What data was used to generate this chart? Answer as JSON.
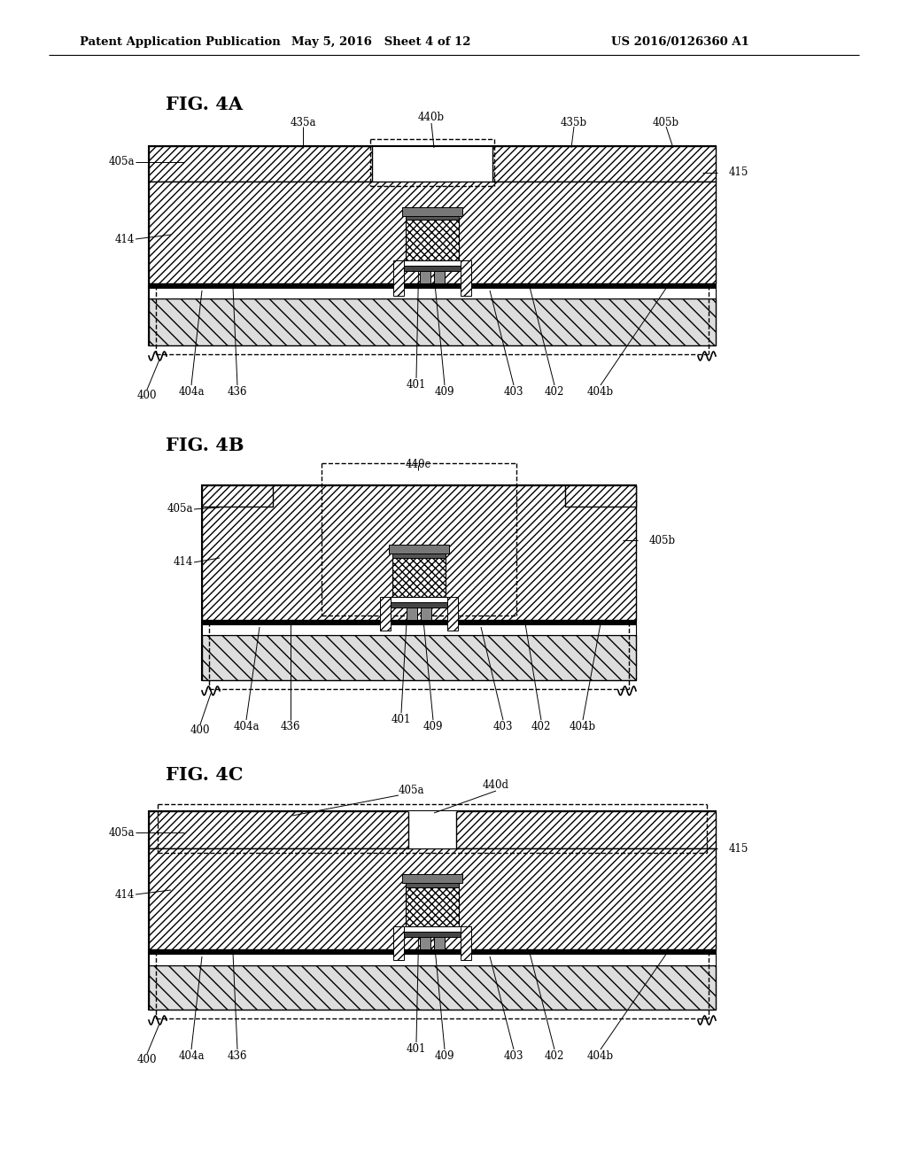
{
  "bg_color": "#ffffff",
  "header_left": "Patent Application Publication",
  "header_mid": "May 5, 2016   Sheet 4 of 12",
  "header_right": "US 2016/0126360 A1",
  "fig_labels": [
    "FIG. 4A",
    "FIG. 4B",
    "FIG. 4C"
  ]
}
